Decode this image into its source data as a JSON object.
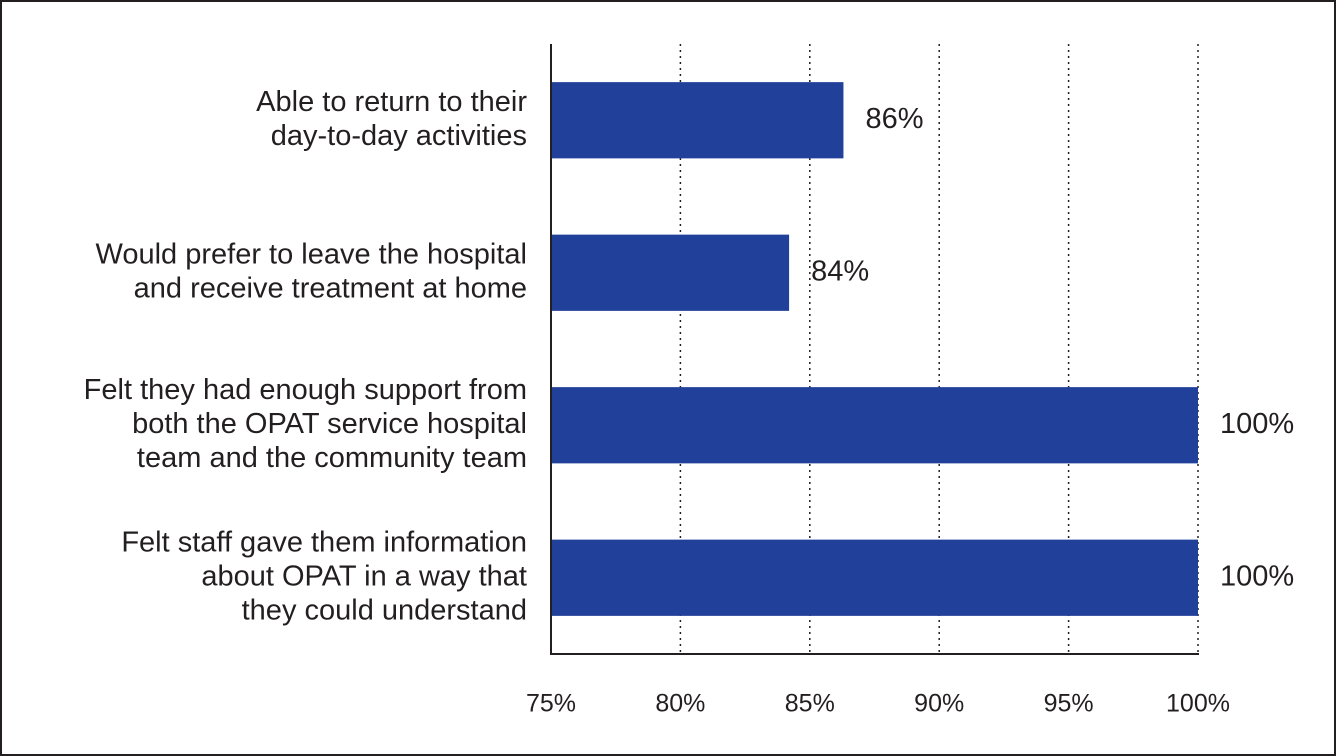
{
  "chart_data": {
    "type": "bar",
    "orientation": "horizontal",
    "categories": [
      [
        "Able to return to their",
        "day-to-day activities"
      ],
      [
        "Would prefer to leave the hospital",
        "and receive treatment at home"
      ],
      [
        "Felt they had enough support from",
        "both the OPAT service hospital",
        "team and the community team"
      ],
      [
        "Felt staff gave them information",
        "about OPAT in a way that",
        "they could understand"
      ]
    ],
    "values": [
      86.3,
      84.2,
      100,
      100
    ],
    "value_labels": [
      "86%",
      "84%",
      "100%",
      "100%"
    ],
    "xlim": [
      75,
      100
    ],
    "xticks": [
      75,
      80,
      85,
      90,
      95,
      100
    ],
    "xtick_labels": [
      "75%",
      "80%",
      "85%",
      "90%",
      "95%",
      "100%"
    ],
    "grid": "vertical-dotted",
    "bar_color": "#21409a",
    "legend": "none"
  }
}
